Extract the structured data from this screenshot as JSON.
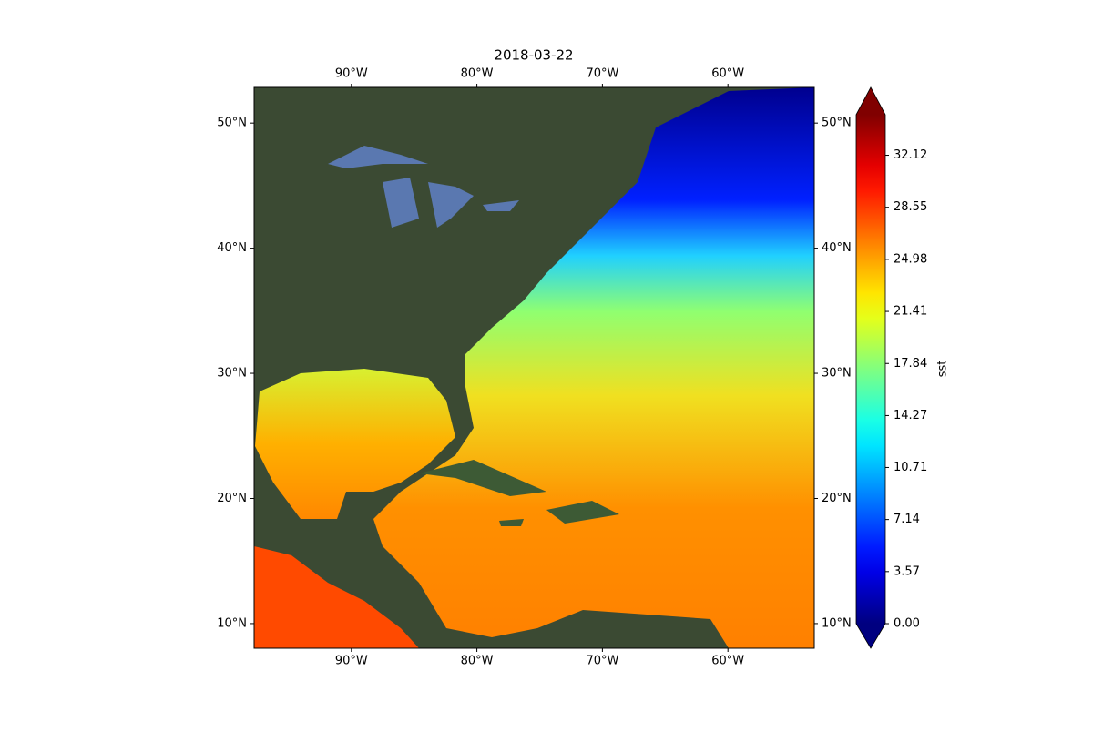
{
  "chart_data": {
    "type": "map",
    "title": "2018-03-22",
    "xlim": [
      -97.75,
      -53.12
    ],
    "ylim": [
      8.03,
      52.85
    ],
    "xticks": [
      {
        "value": -90,
        "label": "90°W"
      },
      {
        "value": -80,
        "label": "80°W"
      },
      {
        "value": -70,
        "label": "70°W"
      },
      {
        "value": -60,
        "label": "60°W"
      }
    ],
    "yticks": [
      {
        "value": 10,
        "label": "10°N"
      },
      {
        "value": 20,
        "label": "20°N"
      },
      {
        "value": 30,
        "label": "30°N"
      },
      {
        "value": 40,
        "label": "40°N"
      },
      {
        "value": 50,
        "label": "50°N"
      }
    ],
    "colorbar": {
      "label": "sst",
      "colormap": "jet",
      "extend": "both",
      "clim": [
        0,
        34.9
      ],
      "ticks": [
        {
          "value": 0,
          "label": "0.00"
        },
        3.57,
        7.14,
        10.71,
        14.27,
        17.84,
        21.41,
        24.98,
        28.55,
        32.12
      ]
    }
  }
}
